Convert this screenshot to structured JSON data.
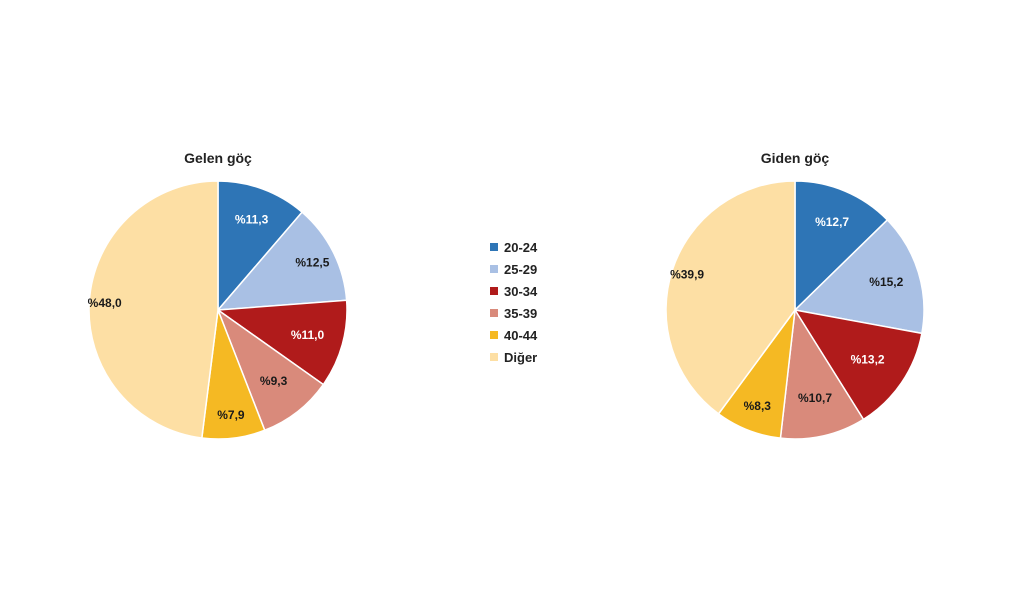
{
  "legend": {
    "items": [
      {
        "label": "20-24",
        "color": "#2E75B6"
      },
      {
        "label": "25-29",
        "color": "#A9C0E4"
      },
      {
        "label": "30-34",
        "color": "#B01B1B"
      },
      {
        "label": "35-39",
        "color": "#D98A7B"
      },
      {
        "label": "40-44",
        "color": "#F5B923"
      },
      {
        "label": "Diğer",
        "color": "#FDDFA4"
      }
    ]
  },
  "chart_data": [
    {
      "type": "pie",
      "title": "Gelen göç",
      "categories": [
        "20-24",
        "25-29",
        "30-34",
        "35-39",
        "40-44",
        "Diğer"
      ],
      "values": [
        11.3,
        12.5,
        11.0,
        9.3,
        7.9,
        48.0
      ],
      "labels": [
        "%11,3",
        "%12,5",
        "%11,0",
        "%9,3",
        "%7,9",
        "%48,0"
      ],
      "label_colors": [
        "#ffffff",
        "#1a1a1a",
        "#ffffff",
        "#1a1a1a",
        "#1a1a1a",
        "#1a1a1a"
      ],
      "colors": [
        "#2E75B6",
        "#A9C0E4",
        "#B01B1B",
        "#D98A7B",
        "#F5B923",
        "#FDDFA4"
      ],
      "start_angle": "12 o'clock",
      "direction": "clockwise",
      "legend": "center"
    },
    {
      "type": "pie",
      "title": "Giden göç",
      "categories": [
        "20-24",
        "25-29",
        "30-34",
        "35-39",
        "40-44",
        "Diğer"
      ],
      "values": [
        12.7,
        15.2,
        13.2,
        10.7,
        8.3,
        39.9
      ],
      "labels": [
        "%12,7",
        "%15,2",
        "%13,2",
        "%10,7",
        "%8,3",
        "%39,9"
      ],
      "label_colors": [
        "#ffffff",
        "#1a1a1a",
        "#ffffff",
        "#1a1a1a",
        "#1a1a1a",
        "#1a1a1a"
      ],
      "colors": [
        "#2E75B6",
        "#A9C0E4",
        "#B01B1B",
        "#D98A7B",
        "#F5B923",
        "#FDDFA4"
      ],
      "start_angle": "12 o'clock",
      "direction": "clockwise",
      "legend": "center"
    }
  ]
}
